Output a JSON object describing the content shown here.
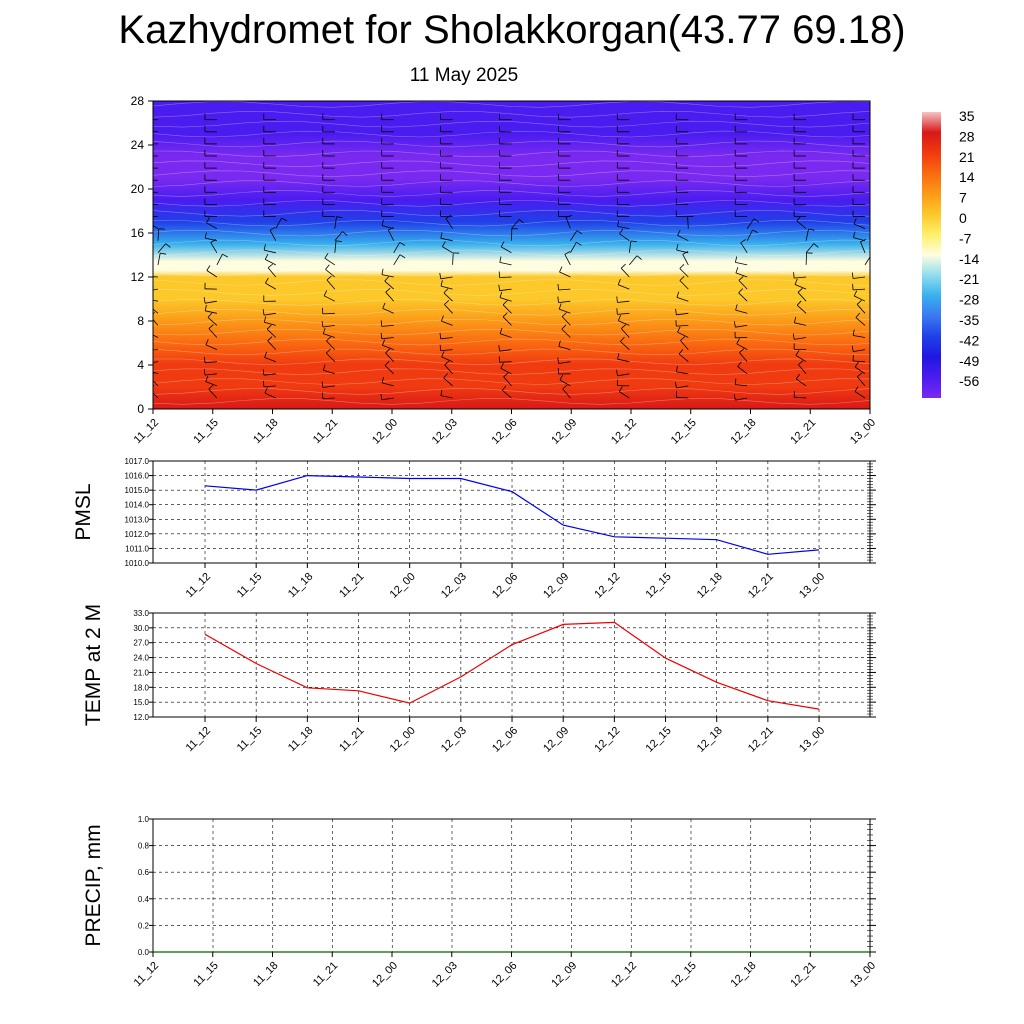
{
  "header": {
    "title": "Kazhydromet for Sholakkorgan(43.77 69.18)",
    "subtitle": "11 May 2025"
  },
  "chart_data": [
    {
      "type": "heatmap",
      "title": "",
      "xlabel": "",
      "ylabel": "",
      "x_ticks": [
        "11_12",
        "11_15",
        "11_18",
        "11_21",
        "12_00",
        "12_03",
        "12_06",
        "12_09",
        "12_12",
        "12_15",
        "12_18",
        "12_21",
        "13_00"
      ],
      "y_ticks": [
        0,
        4,
        8,
        12,
        16,
        20,
        24,
        28
      ],
      "ylim": [
        0,
        28
      ],
      "description_colorscale": "blue (cold) to red (warm)",
      "colorbar_labels": [
        "35",
        "28",
        "21",
        "14",
        "7",
        "0",
        "-7",
        "-14",
        "-21",
        "-28",
        "-35",
        "-42",
        "-49",
        "-56"
      ],
      "colorbar_range": [
        -60,
        38
      ],
      "colorbar_colors": [
        "#f6c4c4",
        "#d81818",
        "#f03a10",
        "#fa6a10",
        "#fb9a18",
        "#fcc82a",
        "#fff06a",
        "#fffde0",
        "#8fdcf0",
        "#38b0ec",
        "#3a78f0",
        "#2040e8",
        "#2018e0",
        "#4a1cf0",
        "#7a2af0"
      ],
      "profile_levels": [
        0,
        2,
        4,
        6,
        8,
        10,
        12,
        12.6,
        13.4,
        15,
        17,
        19,
        21,
        23,
        25,
        28
      ],
      "profile_values": [
        31,
        27,
        22,
        16,
        11,
        5,
        0,
        -8,
        -14,
        -24,
        -37,
        -52,
        -57,
        -58,
        -55,
        -53
      ],
      "wind_barbs": true
    },
    {
      "type": "line",
      "ylabel": "PMSL",
      "x": [
        "11_12",
        "11_15",
        "11_18",
        "11_21",
        "12_00",
        "12_03",
        "12_06",
        "12_09",
        "12_12",
        "12_15",
        "12_18",
        "12_21",
        "13_00"
      ],
      "y_tick_labels": [
        "1017.0",
        "1016.0",
        "1015.0",
        "1014.0",
        "1013.0",
        "1012.0",
        "1011.0",
        "1010.0"
      ],
      "ylim": [
        1010,
        1017
      ],
      "grid": true,
      "series": [
        {
          "color": "#0000ee",
          "values": [
            1015.3,
            1015.0,
            1016.0,
            1015.9,
            1015.8,
            1015.8,
            1014.9,
            1012.6,
            1011.8,
            1011.7,
            1011.6,
            1010.6,
            1010.9
          ]
        }
      ]
    },
    {
      "type": "line",
      "ylabel": "TEMP at 2 M",
      "x": [
        "11_12",
        "11_15",
        "11_18",
        "11_21",
        "12_00",
        "12_03",
        "12_06",
        "12_09",
        "12_12",
        "12_15",
        "12_18",
        "12_21",
        "13_00"
      ],
      "y_tick_labels": [
        "33.0",
        "30.0",
        "27.0",
        "24.0",
        "21.0",
        "18.0",
        "15.0",
        "12.0"
      ],
      "ylim": [
        12,
        33
      ],
      "grid": true,
      "series": [
        {
          "color": "#ee0000",
          "values": [
            28.7,
            22.8,
            17.9,
            17.3,
            14.8,
            20.1,
            26.6,
            30.7,
            31.1,
            23.9,
            19.0,
            15.3,
            13.6
          ]
        }
      ]
    },
    {
      "type": "line",
      "ylabel": "PRECIP, mm",
      "x_ticks": [
        "11_12",
        "11_15",
        "11_18",
        "11_21",
        "12_00",
        "12_03",
        "12_06",
        "12_09",
        "12_12",
        "12_15",
        "12_18",
        "12_21",
        "13_00"
      ],
      "y_tick_labels": [
        "1.0",
        "0.8",
        "0.6",
        "0.4",
        "0.2",
        "0.0"
      ],
      "ylim": [
        0,
        1
      ],
      "grid": true,
      "series": [
        {
          "color": "#006400",
          "values": [
            0,
            0,
            0,
            0,
            0,
            0,
            0,
            0,
            0,
            0,
            0,
            0
          ]
        }
      ]
    }
  ]
}
